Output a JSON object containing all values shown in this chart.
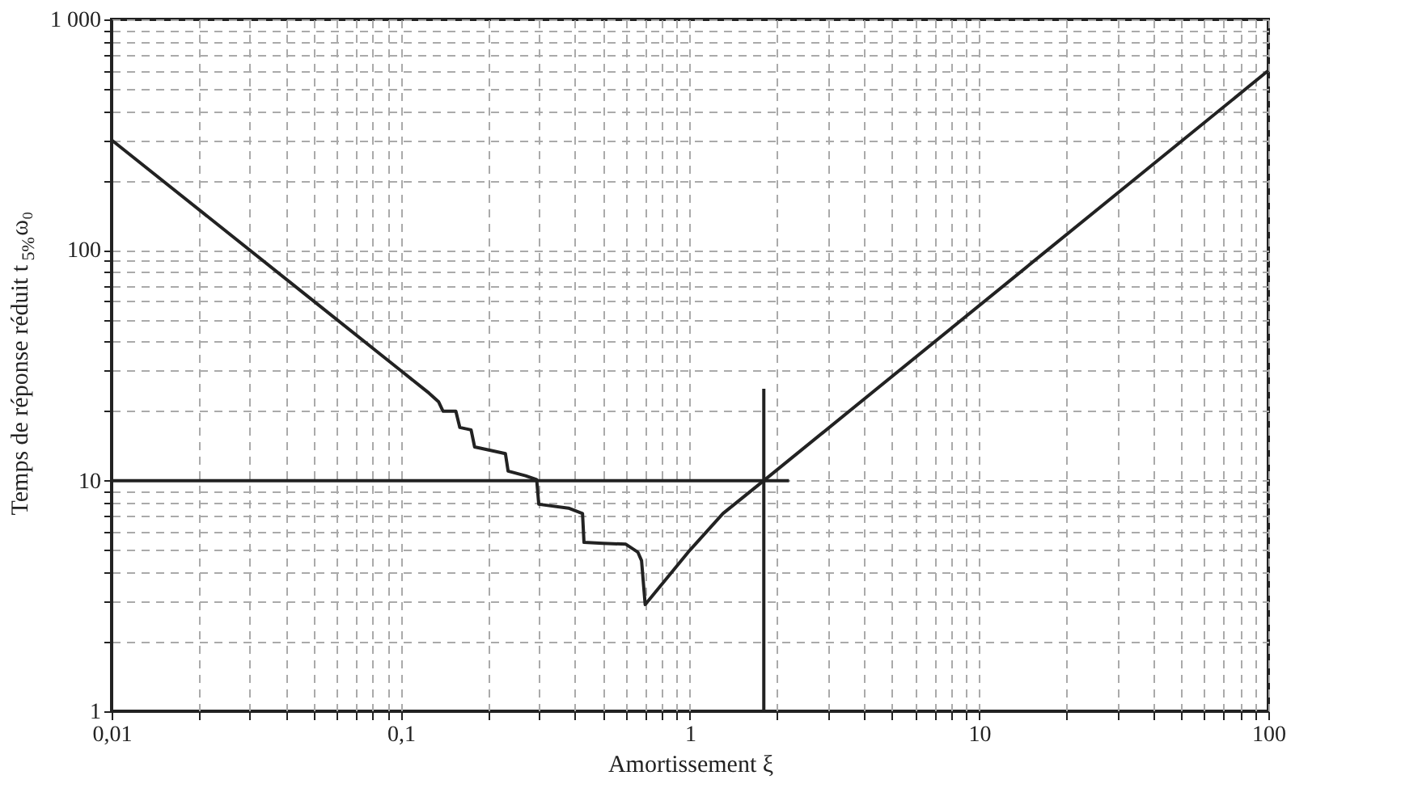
{
  "chart_data": {
    "type": "line",
    "xlabel": "Amortissement ξ",
    "ylabel": "Temps de réponse réduit t$_{5%}$ω₀",
    "log": "xy",
    "grid": true,
    "line_style": "solid",
    "xlim": [
      0.01,
      100
    ],
    "ylim": [
      1,
      1000
    ],
    "xticks": [
      {
        "value": 0.01,
        "label": "0,01"
      },
      {
        "value": 0.02,
        "label": null
      },
      {
        "value": 0.03,
        "label": null
      },
      {
        "value": 0.04,
        "label": null
      },
      {
        "value": 0.05,
        "label": null
      },
      {
        "value": 0.06,
        "label": null
      },
      {
        "value": 0.07,
        "label": null
      },
      {
        "value": 0.08,
        "label": null
      },
      {
        "value": 0.09,
        "label": null
      },
      {
        "value": 0.1,
        "label": "0,1"
      },
      {
        "value": 0.2,
        "label": null
      },
      {
        "value": 0.3,
        "label": null
      },
      {
        "value": 0.4,
        "label": null
      },
      {
        "value": 0.5,
        "label": null
      },
      {
        "value": 0.6,
        "label": null
      },
      {
        "value": 0.7,
        "label": null
      },
      {
        "value": 0.8,
        "label": null
      },
      {
        "value": 0.9,
        "label": null
      },
      1,
      {
        "value": 2,
        "label": null
      },
      {
        "value": 3,
        "label": null
      },
      {
        "value": 4,
        "label": null
      },
      {
        "value": 5,
        "label": null
      },
      {
        "value": 6,
        "label": null
      },
      {
        "value": 7,
        "label": null
      },
      {
        "value": 8,
        "label": null
      },
      {
        "value": 9,
        "label": null
      },
      10,
      {
        "value": 20,
        "label": null
      },
      {
        "value": 30,
        "label": null
      },
      {
        "value": 40,
        "label": null
      },
      {
        "value": 50,
        "label": null
      },
      {
        "value": 60,
        "label": null
      },
      {
        "value": 70,
        "label": null
      },
      {
        "value": 80,
        "label": null
      },
      {
        "value": 90,
        "label": null
      },
      100
    ],
    "yticks": [
      1,
      {
        "value": 2,
        "label": null
      },
      {
        "value": 3,
        "label": null
      },
      {
        "value": 4,
        "label": null
      },
      {
        "value": 5,
        "label": null
      },
      {
        "value": 6,
        "label": null
      },
      {
        "value": 7,
        "label": null
      },
      {
        "value": 8,
        "label": null
      },
      {
        "value": 9,
        "label": null
      },
      10,
      {
        "value": 20,
        "label": null
      },
      {
        "value": 30,
        "label": null
      },
      {
        "value": 40,
        "label": null
      },
      {
        "value": 50,
        "label": null
      },
      {
        "value": 60,
        "label": null
      },
      {
        "value": 70,
        "label": null
      },
      {
        "value": 80,
        "label": null
      },
      {
        "value": 90,
        "label": null
      },
      100,
      {
        "value": 200,
        "label": null
      },
      {
        "value": 300,
        "label": null
      },
      {
        "value": 400,
        "label": null
      },
      {
        "value": 500,
        "label": null
      },
      {
        "value": 600,
        "label": null
      },
      {
        "value": 700,
        "label": null
      },
      {
        "value": 800,
        "label": null
      },
      {
        "value": 900,
        "label": null
      },
      {
        "value": 1000,
        "label": "1 000"
      }
    ],
    "series": [
      {
        "color": "#222222",
        "x": [
          0.01,
          0.05,
          0.1,
          0.12,
          0.125,
          0.135,
          0.14,
          0.155,
          0.16,
          0.175,
          0.18,
          0.2,
          0.23,
          0.235,
          0.27,
          0.295,
          0.3,
          0.38,
          0.425,
          0.43,
          0.5,
          0.6,
          0.66,
          0.68,
          0.7,
          1,
          1.3,
          1.8,
          100
        ],
        "values": [
          300,
          60,
          30,
          25,
          24,
          22,
          20,
          20,
          17,
          16.6,
          14,
          13.6,
          13.1,
          11,
          10.5,
          10.1,
          7.9,
          7.6,
          7.2,
          5.4,
          5.35,
          5.3,
          4.9,
          4.5,
          2.9,
          5.0,
          7.2,
          10,
          600
        ]
      },
      {
        "color": "#222222",
        "x": [
          0.01,
          2.2
        ],
        "values": [
          10,
          10
        ]
      },
      {
        "color": "#222222",
        "x": [
          1.8,
          1.8
        ],
        "values": [
          1,
          25
        ]
      }
    ]
  }
}
